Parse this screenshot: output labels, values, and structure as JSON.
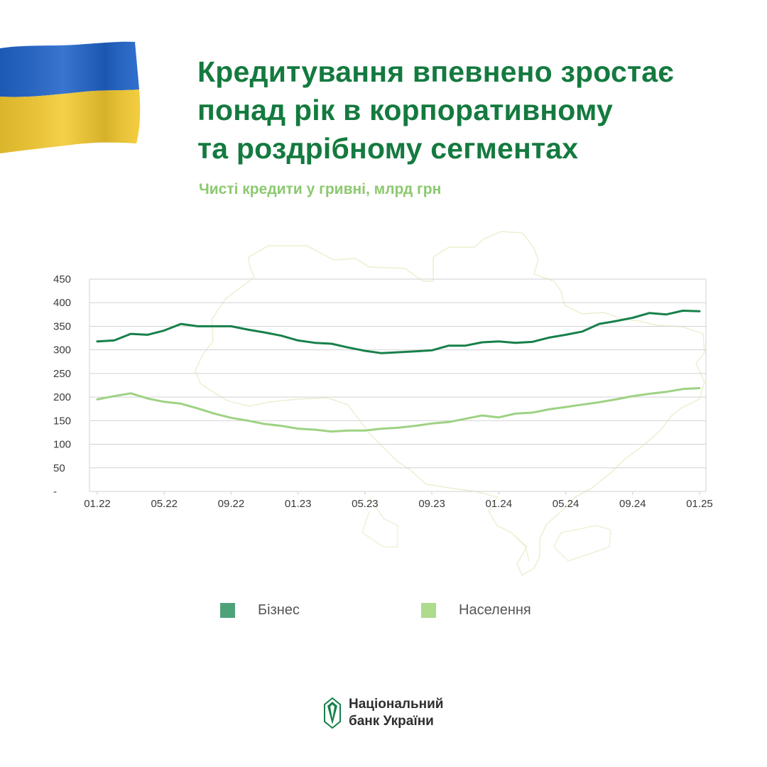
{
  "title_lines": [
    "Кредитування впевнено зростає",
    "понад рік в корпоративному",
    "та роздрібному сегментах"
  ],
  "subtitle": "Чисті кредити у гривні, млрд грн",
  "colors": {
    "title": "#147a3f",
    "subtitle": "#8cc96f",
    "business": "#17804a",
    "population": "#9ed283",
    "legend_business": "#4ea27a",
    "legend_population": "#afdb8c",
    "grid": "#d2d2d2",
    "map_outline": "#e8f0cf",
    "flag_blue": "#1f63c9",
    "flag_yellow": "#f3c92f"
  },
  "chart_data": {
    "type": "line",
    "title": "Чисті кредити у гривні, млрд грн",
    "ylim": [
      0,
      450
    ],
    "yticks": [
      0,
      50,
      100,
      150,
      200,
      250,
      300,
      350,
      400,
      450
    ],
    "ytick_labels": [
      "-",
      "50",
      "100",
      "150",
      "200",
      "250",
      "300",
      "350",
      "400",
      "450"
    ],
    "xtick_labels": [
      "01.22",
      "05.22",
      "09.22",
      "01.23",
      "05.23",
      "09.23",
      "01.24",
      "05.24",
      "09.24",
      "01.25"
    ],
    "grid": true,
    "legend_position": "bottom",
    "series": [
      {
        "name": "Бізнес",
        "color_key": "business",
        "points": [
          [
            "01.22",
            318
          ],
          [
            "02.22",
            320
          ],
          [
            "03.22",
            334
          ],
          [
            "04.22",
            332
          ],
          [
            "05.22",
            341
          ],
          [
            "06.22",
            355
          ],
          [
            "07.22",
            350
          ],
          [
            "08.22",
            350
          ],
          [
            "09.22",
            350
          ],
          [
            "10.22",
            343
          ],
          [
            "11.22",
            337
          ],
          [
            "12.22",
            330
          ],
          [
            "01.23",
            320
          ],
          [
            "02.23",
            315
          ],
          [
            "03.23",
            313
          ],
          [
            "04.23",
            305
          ],
          [
            "05.23",
            298
          ],
          [
            "06.23",
            293
          ],
          [
            "07.23",
            295
          ],
          [
            "08.23",
            297
          ],
          [
            "09.23",
            299
          ],
          [
            "10.23",
            309
          ],
          [
            "11.23",
            309
          ],
          [
            "12.23",
            316
          ],
          [
            "01.24",
            318
          ],
          [
            "02.24",
            315
          ],
          [
            "03.24",
            317
          ],
          [
            "04.24",
            326
          ],
          [
            "05.24",
            332
          ],
          [
            "06.24",
            339
          ],
          [
            "07.24",
            355
          ],
          [
            "08.24",
            361
          ],
          [
            "09.24",
            368
          ],
          [
            "10.24",
            378
          ],
          [
            "11.24",
            375
          ],
          [
            "12.24",
            383
          ],
          [
            "01.25",
            382
          ]
        ]
      },
      {
        "name": "Населення",
        "color_key": "population",
        "points": [
          [
            "01.22",
            195
          ],
          [
            "02.22",
            202
          ],
          [
            "03.22",
            208
          ],
          [
            "04.22",
            197
          ],
          [
            "05.22",
            190
          ],
          [
            "06.22",
            186
          ],
          [
            "07.22",
            176
          ],
          [
            "08.22",
            165
          ],
          [
            "09.22",
            156
          ],
          [
            "10.22",
            150
          ],
          [
            "11.22",
            143
          ],
          [
            "12.22",
            139
          ],
          [
            "01.23",
            133
          ],
          [
            "02.23",
            131
          ],
          [
            "03.23",
            127
          ],
          [
            "04.23",
            129
          ],
          [
            "05.23",
            129
          ],
          [
            "06.23",
            133
          ],
          [
            "07.23",
            135
          ],
          [
            "08.23",
            139
          ],
          [
            "09.23",
            144
          ],
          [
            "10.23",
            147
          ],
          [
            "11.23",
            154
          ],
          [
            "12.23",
            161
          ],
          [
            "01.24",
            157
          ],
          [
            "02.24",
            165
          ],
          [
            "03.24",
            167
          ],
          [
            "04.24",
            174
          ],
          [
            "05.24",
            179
          ],
          [
            "06.24",
            184
          ],
          [
            "07.24",
            189
          ],
          [
            "08.24",
            195
          ],
          [
            "09.24",
            202
          ],
          [
            "10.24",
            207
          ],
          [
            "11.24",
            211
          ],
          [
            "12.24",
            217
          ],
          [
            "01.25",
            219
          ]
        ]
      }
    ]
  },
  "legend": [
    {
      "label": "Бізнес",
      "color_key": "legend_business"
    },
    {
      "label": "Населення",
      "color_key": "legend_population"
    }
  ],
  "logo": {
    "line1": "Національний",
    "line2": "банк України",
    "icon": "nbu-logo-icon"
  }
}
